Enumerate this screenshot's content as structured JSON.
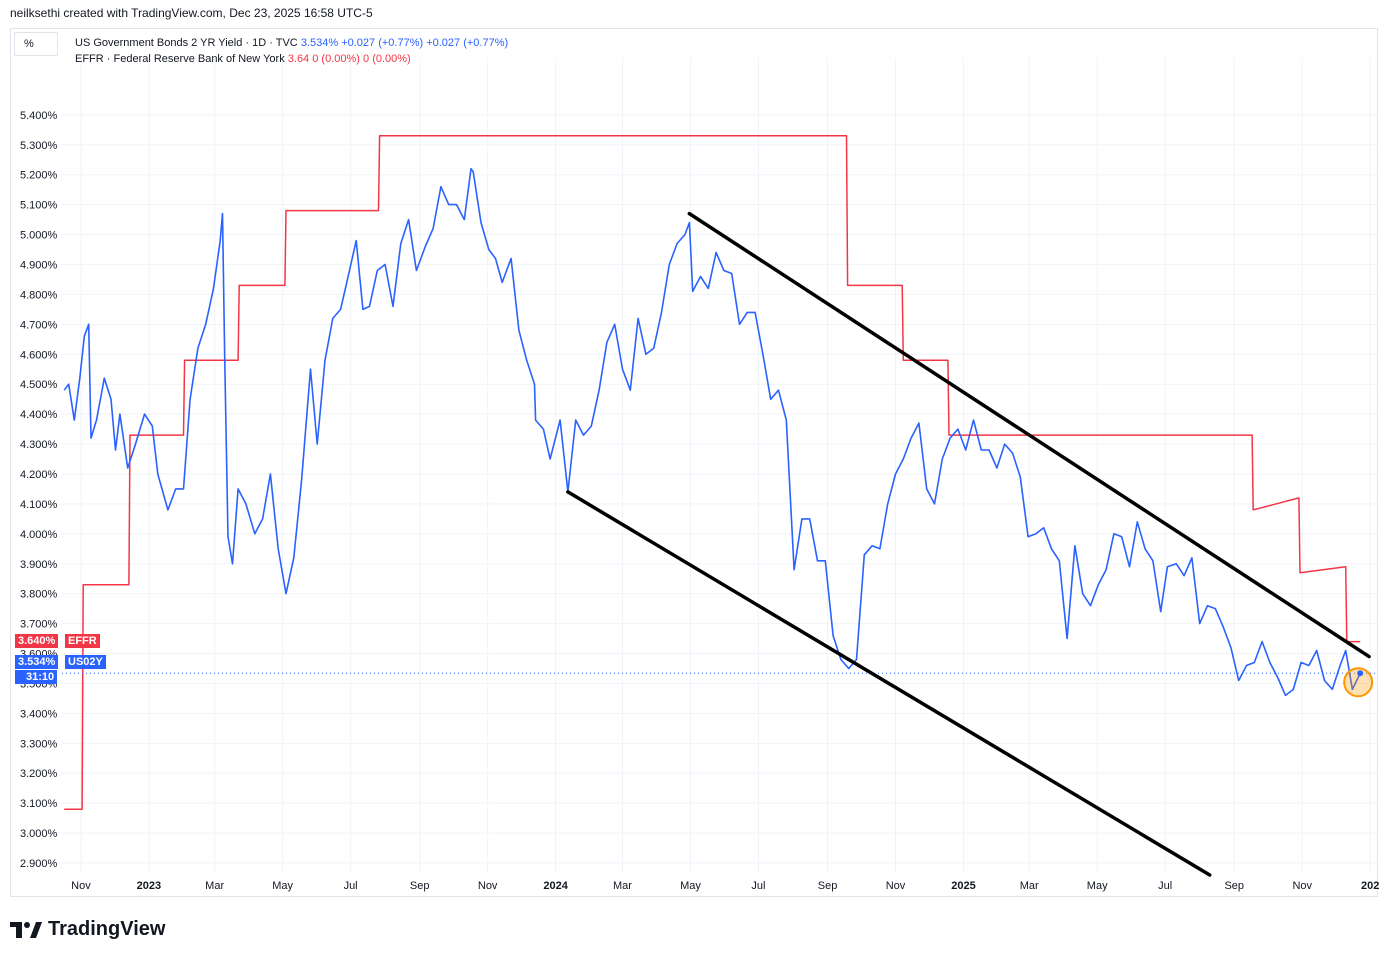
{
  "header": {
    "credit": "neilksethi created with TradingView.com, Dec 23, 2025 16:58 UTC-5"
  },
  "unit_button": {
    "label": "%"
  },
  "legend": {
    "row1": {
      "name": "US Government Bonds 2 YR Yield · 1D · TVC",
      "last": "3.534%",
      "chg1": "+0.027 (+0.77%)",
      "chg2": "+0.027 (+0.77%)"
    },
    "row2": {
      "name": "EFFR · Federal Reserve Bank of New York",
      "last": "3.64",
      "chg1": "0 (0.00%)",
      "chg2": "0 (0.00%)"
    }
  },
  "price_tags": {
    "effr": {
      "value": "3.640%",
      "label": "EFFR"
    },
    "us02y": {
      "value": "3.534%",
      "label": "US02Y",
      "countdown": "31:10"
    }
  },
  "footer": {
    "brand": "TradingView"
  },
  "colors": {
    "us02y": "#2962ff",
    "effr": "#f23645",
    "trendline": "#000000",
    "grid": "#f0f3fa"
  },
  "chart_data": {
    "type": "line",
    "title": "",
    "y_unit": "%",
    "ylim": [
      2.87,
      5.59
    ],
    "y_ticks": [
      "5.400%",
      "5.300%",
      "5.200%",
      "5.100%",
      "5.000%",
      "4.900%",
      "4.800%",
      "4.700%",
      "4.600%",
      "4.500%",
      "4.400%",
      "4.300%",
      "4.200%",
      "4.100%",
      "4.000%",
      "3.900%",
      "3.800%",
      "3.700%",
      "3.600%",
      "3.500%",
      "3.400%",
      "3.300%",
      "3.200%",
      "3.100%",
      "3.000%",
      "2.900%"
    ],
    "y_tick_values": [
      5.4,
      5.3,
      5.2,
      5.1,
      5.0,
      4.9,
      4.8,
      4.7,
      4.6,
      4.5,
      4.4,
      4.3,
      4.2,
      4.1,
      4.0,
      3.9,
      3.8,
      3.7,
      3.6,
      3.5,
      3.4,
      3.3,
      3.2,
      3.1,
      3.0,
      2.9
    ],
    "x_ticks": [
      {
        "label": "Nov",
        "date": "2022-11-01"
      },
      {
        "label": "2023",
        "date": "2023-01-01"
      },
      {
        "label": "Mar",
        "date": "2023-03-01"
      },
      {
        "label": "May",
        "date": "2023-05-01"
      },
      {
        "label": "Jul",
        "date": "2023-07-01"
      },
      {
        "label": "Sep",
        "date": "2023-09-01"
      },
      {
        "label": "Nov",
        "date": "2023-11-01"
      },
      {
        "label": "2024",
        "date": "2024-01-01"
      },
      {
        "label": "Mar",
        "date": "2024-03-01"
      },
      {
        "label": "May",
        "date": "2024-05-01"
      },
      {
        "label": "Jul",
        "date": "2024-07-01"
      },
      {
        "label": "Sep",
        "date": "2024-09-01"
      },
      {
        "label": "Nov",
        "date": "2024-11-01"
      },
      {
        "label": "2025",
        "date": "2025-01-01"
      },
      {
        "label": "Mar",
        "date": "2025-03-01"
      },
      {
        "label": "May",
        "date": "2025-05-01"
      },
      {
        "label": "Jul",
        "date": "2025-07-01"
      },
      {
        "label": "Sep",
        "date": "2025-09-01"
      },
      {
        "label": "Nov",
        "date": "2025-11-01"
      },
      {
        "label": "202",
        "date": "2026-01-01"
      }
    ],
    "x_range": [
      "2022-10-15",
      "2026-01-08"
    ],
    "series": [
      {
        "name": "US02Y",
        "points": [
          [
            "2022-10-17",
            4.48
          ],
          [
            "2022-10-21",
            4.5
          ],
          [
            "2022-10-26",
            4.38
          ],
          [
            "2022-10-31",
            4.52
          ],
          [
            "2022-11-04",
            4.66
          ],
          [
            "2022-11-08",
            4.7
          ],
          [
            "2022-11-10",
            4.32
          ],
          [
            "2022-11-15",
            4.38
          ],
          [
            "2022-11-22",
            4.52
          ],
          [
            "2022-11-28",
            4.45
          ],
          [
            "2022-12-02",
            4.28
          ],
          [
            "2022-12-06",
            4.4
          ],
          [
            "2022-12-13",
            4.22
          ],
          [
            "2022-12-20",
            4.3
          ],
          [
            "2022-12-28",
            4.4
          ],
          [
            "2023-01-04",
            4.36
          ],
          [
            "2023-01-09",
            4.2
          ],
          [
            "2023-01-18",
            4.08
          ],
          [
            "2023-01-25",
            4.15
          ],
          [
            "2023-02-01",
            4.15
          ],
          [
            "2023-02-07",
            4.45
          ],
          [
            "2023-02-14",
            4.62
          ],
          [
            "2023-02-21",
            4.7
          ],
          [
            "2023-02-28",
            4.82
          ],
          [
            "2023-03-06",
            4.98
          ],
          [
            "2023-03-08",
            5.07
          ],
          [
            "2023-03-10",
            4.59
          ],
          [
            "2023-03-13",
            3.99
          ],
          [
            "2023-03-17",
            3.9
          ],
          [
            "2023-03-22",
            4.15
          ],
          [
            "2023-03-29",
            4.1
          ],
          [
            "2023-04-06",
            4.0
          ],
          [
            "2023-04-13",
            4.05
          ],
          [
            "2023-04-20",
            4.2
          ],
          [
            "2023-04-27",
            3.95
          ],
          [
            "2023-05-04",
            3.8
          ],
          [
            "2023-05-11",
            3.92
          ],
          [
            "2023-05-18",
            4.18
          ],
          [
            "2023-05-26",
            4.55
          ],
          [
            "2023-06-01",
            4.3
          ],
          [
            "2023-06-08",
            4.58
          ],
          [
            "2023-06-15",
            4.72
          ],
          [
            "2023-06-22",
            4.75
          ],
          [
            "2023-06-30",
            4.88
          ],
          [
            "2023-07-06",
            4.98
          ],
          [
            "2023-07-12",
            4.75
          ],
          [
            "2023-07-18",
            4.76
          ],
          [
            "2023-07-25",
            4.88
          ],
          [
            "2023-08-01",
            4.9
          ],
          [
            "2023-08-08",
            4.76
          ],
          [
            "2023-08-15",
            4.97
          ],
          [
            "2023-08-22",
            5.05
          ],
          [
            "2023-08-29",
            4.88
          ],
          [
            "2023-09-06",
            4.96
          ],
          [
            "2023-09-13",
            5.02
          ],
          [
            "2023-09-20",
            5.16
          ],
          [
            "2023-09-27",
            5.1
          ],
          [
            "2023-10-04",
            5.1
          ],
          [
            "2023-10-11",
            5.05
          ],
          [
            "2023-10-17",
            5.22
          ],
          [
            "2023-10-19",
            5.21
          ],
          [
            "2023-10-26",
            5.04
          ],
          [
            "2023-11-02",
            4.95
          ],
          [
            "2023-11-08",
            4.92
          ],
          [
            "2023-11-14",
            4.84
          ],
          [
            "2023-11-22",
            4.92
          ],
          [
            "2023-11-29",
            4.68
          ],
          [
            "2023-12-06",
            4.58
          ],
          [
            "2023-12-13",
            4.5
          ],
          [
            "2023-12-14",
            4.38
          ],
          [
            "2023-12-21",
            4.35
          ],
          [
            "2023-12-27",
            4.25
          ],
          [
            "2024-01-05",
            4.38
          ],
          [
            "2024-01-12",
            4.14
          ],
          [
            "2024-01-19",
            4.38
          ],
          [
            "2024-01-26",
            4.33
          ],
          [
            "2024-02-02",
            4.36
          ],
          [
            "2024-02-09",
            4.48
          ],
          [
            "2024-02-16",
            4.64
          ],
          [
            "2024-02-23",
            4.7
          ],
          [
            "2024-03-01",
            4.55
          ],
          [
            "2024-03-08",
            4.48
          ],
          [
            "2024-03-15",
            4.72
          ],
          [
            "2024-03-22",
            4.6
          ],
          [
            "2024-03-29",
            4.62
          ],
          [
            "2024-04-05",
            4.74
          ],
          [
            "2024-04-12",
            4.9
          ],
          [
            "2024-04-19",
            4.97
          ],
          [
            "2024-04-26",
            5.0
          ],
          [
            "2024-04-30",
            5.04
          ],
          [
            "2024-05-03",
            4.81
          ],
          [
            "2024-05-10",
            4.86
          ],
          [
            "2024-05-17",
            4.82
          ],
          [
            "2024-05-24",
            4.94
          ],
          [
            "2024-05-31",
            4.88
          ],
          [
            "2024-06-07",
            4.87
          ],
          [
            "2024-06-14",
            4.7
          ],
          [
            "2024-06-21",
            4.74
          ],
          [
            "2024-06-28",
            4.74
          ],
          [
            "2024-07-05",
            4.6
          ],
          [
            "2024-07-12",
            4.45
          ],
          [
            "2024-07-19",
            4.48
          ],
          [
            "2024-07-26",
            4.38
          ],
          [
            "2024-08-02",
            3.88
          ],
          [
            "2024-08-09",
            4.05
          ],
          [
            "2024-08-16",
            4.05
          ],
          [
            "2024-08-23",
            3.91
          ],
          [
            "2024-08-30",
            3.91
          ],
          [
            "2024-09-06",
            3.66
          ],
          [
            "2024-09-13",
            3.58
          ],
          [
            "2024-09-20",
            3.55
          ],
          [
            "2024-09-27",
            3.58
          ],
          [
            "2024-10-04",
            3.93
          ],
          [
            "2024-10-11",
            3.96
          ],
          [
            "2024-10-18",
            3.95
          ],
          [
            "2024-10-25",
            4.1
          ],
          [
            "2024-11-01",
            4.2
          ],
          [
            "2024-11-08",
            4.25
          ],
          [
            "2024-11-15",
            4.32
          ],
          [
            "2024-11-22",
            4.37
          ],
          [
            "2024-11-29",
            4.15
          ],
          [
            "2024-12-06",
            4.1
          ],
          [
            "2024-12-13",
            4.25
          ],
          [
            "2024-12-20",
            4.32
          ],
          [
            "2024-12-27",
            4.35
          ],
          [
            "2025-01-03",
            4.28
          ],
          [
            "2025-01-10",
            4.38
          ],
          [
            "2025-01-17",
            4.28
          ],
          [
            "2025-01-24",
            4.28
          ],
          [
            "2025-01-31",
            4.22
          ],
          [
            "2025-02-07",
            4.3
          ],
          [
            "2025-02-14",
            4.27
          ],
          [
            "2025-02-21",
            4.19
          ],
          [
            "2025-02-28",
            3.99
          ],
          [
            "2025-03-07",
            4.0
          ],
          [
            "2025-03-14",
            4.02
          ],
          [
            "2025-03-21",
            3.95
          ],
          [
            "2025-03-28",
            3.91
          ],
          [
            "2025-04-04",
            3.65
          ],
          [
            "2025-04-11",
            3.96
          ],
          [
            "2025-04-18",
            3.8
          ],
          [
            "2025-04-25",
            3.76
          ],
          [
            "2025-05-02",
            3.83
          ],
          [
            "2025-05-09",
            3.88
          ],
          [
            "2025-05-16",
            4.0
          ],
          [
            "2025-05-23",
            3.99
          ],
          [
            "2025-05-30",
            3.89
          ],
          [
            "2025-06-06",
            4.04
          ],
          [
            "2025-06-13",
            3.95
          ],
          [
            "2025-06-20",
            3.91
          ],
          [
            "2025-06-27",
            3.74
          ],
          [
            "2025-07-03",
            3.89
          ],
          [
            "2025-07-11",
            3.9
          ],
          [
            "2025-07-18",
            3.86
          ],
          [
            "2025-07-25",
            3.92
          ],
          [
            "2025-08-01",
            3.7
          ],
          [
            "2025-08-08",
            3.76
          ],
          [
            "2025-08-15",
            3.75
          ],
          [
            "2025-08-22",
            3.69
          ],
          [
            "2025-08-29",
            3.62
          ],
          [
            "2025-09-05",
            3.51
          ],
          [
            "2025-09-12",
            3.56
          ],
          [
            "2025-09-19",
            3.57
          ],
          [
            "2025-09-26",
            3.64
          ],
          [
            "2025-10-03",
            3.57
          ],
          [
            "2025-10-10",
            3.52
          ],
          [
            "2025-10-17",
            3.46
          ],
          [
            "2025-10-24",
            3.48
          ],
          [
            "2025-10-31",
            3.57
          ],
          [
            "2025-11-07",
            3.56
          ],
          [
            "2025-11-14",
            3.61
          ],
          [
            "2025-11-21",
            3.51
          ],
          [
            "2025-11-28",
            3.48
          ],
          [
            "2025-12-05",
            3.56
          ],
          [
            "2025-12-10",
            3.61
          ],
          [
            "2025-12-16",
            3.48
          ],
          [
            "2025-12-23",
            3.534
          ]
        ]
      },
      {
        "name": "EFFR",
        "points": [
          [
            "2022-10-17",
            3.08
          ],
          [
            "2022-11-02",
            3.08
          ],
          [
            "2022-11-03",
            3.83
          ],
          [
            "2022-12-14",
            3.83
          ],
          [
            "2022-12-15",
            4.33
          ],
          [
            "2023-02-01",
            4.33
          ],
          [
            "2023-02-02",
            4.58
          ],
          [
            "2023-03-22",
            4.58
          ],
          [
            "2023-03-23",
            4.83
          ],
          [
            "2023-05-03",
            4.83
          ],
          [
            "2023-05-04",
            5.08
          ],
          [
            "2023-07-26",
            5.08
          ],
          [
            "2023-07-27",
            5.33
          ],
          [
            "2024-09-18",
            5.33
          ],
          [
            "2024-09-19",
            4.83
          ],
          [
            "2024-11-07",
            4.83
          ],
          [
            "2024-11-08",
            4.58
          ],
          [
            "2024-12-18",
            4.58
          ],
          [
            "2024-12-19",
            4.33
          ],
          [
            "2025-09-17",
            4.33
          ],
          [
            "2025-09-18",
            4.08
          ],
          [
            "2025-10-29",
            4.12
          ],
          [
            "2025-10-30",
            3.87
          ],
          [
            "2025-12-10",
            3.89
          ],
          [
            "2025-12-11",
            3.64
          ],
          [
            "2025-12-23",
            3.64
          ]
        ]
      }
    ],
    "trendlines": [
      {
        "from": [
          "2024-04-30",
          5.07
        ],
        "to": [
          "2025-12-31",
          3.59
        ]
      },
      {
        "from": [
          "2024-01-12",
          4.14
        ],
        "to": [
          "2025-08-10",
          2.86
        ]
      }
    ]
  }
}
